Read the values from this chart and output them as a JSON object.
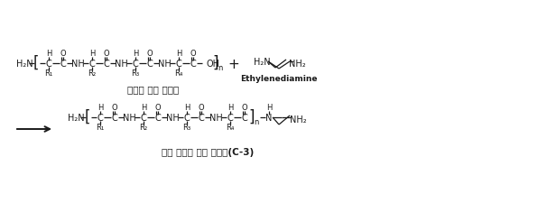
{
  "background_color": "#ffffff",
  "border_color": "#999999",
  "text_color": "#1a1a1a",
  "title1": "단백질 가수 분해물",
  "title2": "변성 단백질 가수 분해물(C-3)",
  "ethylenediamine_label": "Ethylenediamine",
  "figsize": [
    6.17,
    2.26
  ],
  "dpi": 100,
  "fs_main": 7.0,
  "fs_small": 6.0,
  "fs_sub": 6.5
}
